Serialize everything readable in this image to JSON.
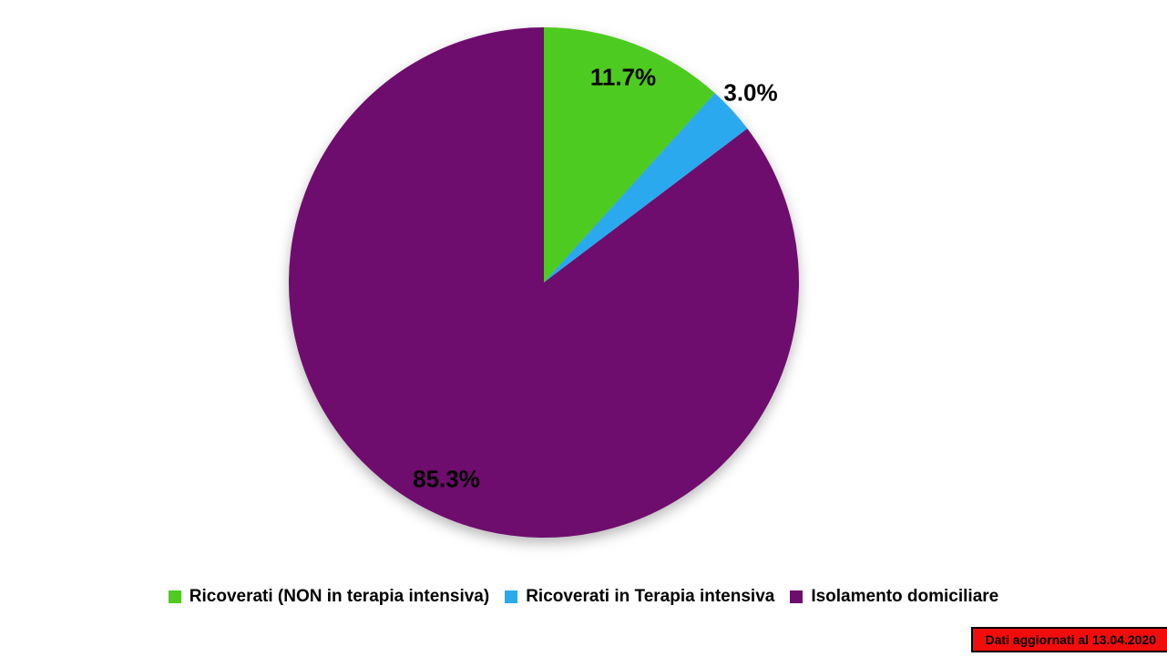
{
  "chart_data": {
    "type": "pie",
    "start_angle_deg": 0,
    "direction": "clockwise",
    "legend_position": "bottom",
    "data_label_color": "#000000",
    "slices": [
      {
        "label": "Ricoverati (NON in terapia intensiva)",
        "value": 11.7,
        "data_label": "11.7%",
        "color": "#4ECB20"
      },
      {
        "label": "Ricoverati in Terapia intensiva",
        "value": 3.0,
        "data_label": "3.0%",
        "color": "#2AA9EF"
      },
      {
        "label": "Isolamento domiciliare",
        "value": 85.3,
        "data_label": "85.3%",
        "color": "#6E0D6D"
      }
    ]
  },
  "footer": {
    "updated_badge": {
      "text": "Dati aggiornati al 13.04.2020",
      "background": "#F20D0D",
      "border_color": "#000000",
      "text_color": "#000000"
    }
  }
}
